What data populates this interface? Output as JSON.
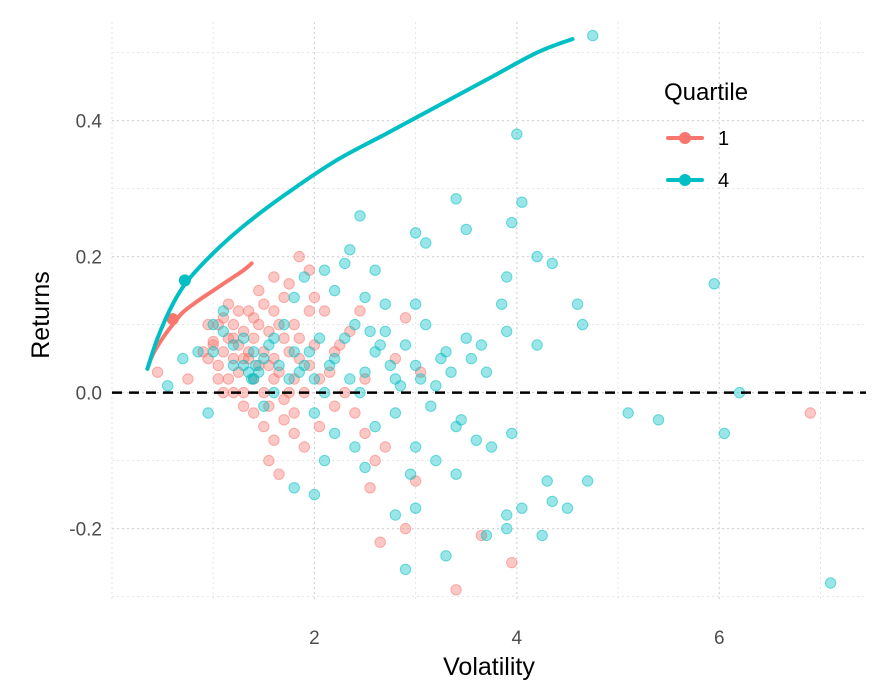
{
  "chart_data": {
    "type": "scatter",
    "title": "",
    "xlabel": "Volatility",
    "ylabel": "Returns",
    "xlim": [
      0.0,
      7.45
    ],
    "ylim": [
      -0.305,
      0.545
    ],
    "x_ticks": [
      2,
      4,
      6
    ],
    "x_tick_labels": [
      "2",
      "4",
      "6"
    ],
    "y_ticks": [
      -0.2,
      0.0,
      0.2,
      0.4
    ],
    "y_tick_labels": [
      "-0.2",
      "0.0",
      "0.2",
      "0.4"
    ],
    "grid": "dotted major and minor",
    "hline": {
      "y": 0.0,
      "style": "dashed",
      "color": "#000000"
    },
    "legend": {
      "title": "Quartile",
      "position": "right",
      "entries": [
        {
          "label": "1",
          "color": "#F8766D"
        },
        {
          "label": "4",
          "color": "#00BFC4"
        }
      ]
    },
    "series": [
      {
        "name": "1",
        "color": "#F8766D",
        "frontier": [
          [
            0.35,
            0.035
          ],
          [
            0.4,
            0.055
          ],
          [
            0.5,
            0.08
          ],
          [
            0.6,
            0.1
          ],
          [
            0.7,
            0.118
          ],
          [
            0.85,
            0.135
          ],
          [
            1.0,
            0.15
          ],
          [
            1.15,
            0.165
          ],
          [
            1.3,
            0.18
          ],
          [
            1.38,
            0.19
          ]
        ],
        "highlight": [
          0.6,
          0.108
        ],
        "points": [
          [
            0.45,
            0.03
          ],
          [
            0.75,
            0.02
          ],
          [
            0.9,
            0.06
          ],
          [
            0.95,
            0.1
          ],
          [
            1.0,
            0.075
          ],
          [
            1.05,
            0.1
          ],
          [
            1.05,
            0.04
          ],
          [
            1.1,
            0.06
          ],
          [
            1.1,
            0.11
          ],
          [
            1.15,
            0.08
          ],
          [
            1.15,
            0.02
          ],
          [
            1.2,
            0.05
          ],
          [
            1.2,
            0.1
          ],
          [
            1.25,
            0.07
          ],
          [
            1.25,
            0.03
          ],
          [
            1.3,
            0.09
          ],
          [
            1.3,
            0.0
          ],
          [
            1.35,
            0.05
          ],
          [
            1.35,
            0.12
          ],
          [
            1.4,
            0.08
          ],
          [
            1.4,
            0.02
          ],
          [
            1.45,
            0.1
          ],
          [
            1.45,
            0.04
          ],
          [
            1.5,
            0.06
          ],
          [
            1.5,
            0.0
          ],
          [
            1.55,
            0.09
          ],
          [
            1.55,
            -0.02
          ],
          [
            1.6,
            0.05
          ],
          [
            1.6,
            0.12
          ],
          [
            1.65,
            0.03
          ],
          [
            1.7,
            0.08
          ],
          [
            1.7,
            -0.01
          ],
          [
            1.75,
            0.06
          ],
          [
            1.8,
            0.1
          ],
          [
            1.8,
            0.02
          ],
          [
            1.85,
            0.05
          ],
          [
            1.9,
            0.0
          ],
          [
            1.95,
            0.04
          ],
          [
            2.0,
            0.07
          ],
          [
            2.05,
            0.02
          ],
          [
            1.2,
            0.0
          ],
          [
            1.3,
            -0.02
          ],
          [
            1.4,
            -0.03
          ],
          [
            1.5,
            -0.05
          ],
          [
            1.6,
            -0.07
          ],
          [
            1.7,
            -0.04
          ],
          [
            1.8,
            -0.06
          ],
          [
            1.9,
            -0.08
          ],
          [
            1.55,
            -0.1
          ],
          [
            1.65,
            -0.12
          ],
          [
            1.75,
            0.16
          ],
          [
            1.85,
            0.2
          ],
          [
            1.95,
            0.18
          ],
          [
            2.0,
            0.14
          ],
          [
            2.1,
            0.12
          ],
          [
            2.2,
            0.06
          ],
          [
            2.3,
            0.0
          ],
          [
            2.4,
            -0.03
          ],
          [
            2.5,
            -0.06
          ],
          [
            2.6,
            -0.1
          ],
          [
            2.55,
            -0.14
          ],
          [
            2.65,
            -0.22
          ],
          [
            2.9,
            -0.2
          ],
          [
            3.0,
            -0.13
          ],
          [
            3.4,
            -0.29
          ],
          [
            3.95,
            -0.25
          ],
          [
            3.65,
            -0.21
          ],
          [
            2.9,
            0.11
          ],
          [
            2.8,
            0.05
          ],
          [
            3.05,
            0.03
          ],
          [
            1.15,
            0.13
          ],
          [
            1.45,
            0.15
          ],
          [
            1.6,
            0.17
          ],
          [
            1.35,
            0.06
          ],
          [
            1.25,
            0.12
          ],
          [
            1.05,
            0.02
          ],
          [
            0.95,
            0.05
          ],
          [
            1.1,
            0.0
          ],
          [
            1.5,
            0.13
          ],
          [
            1.7,
            0.14
          ],
          [
            6.9,
            -0.03
          ],
          [
            2.2,
            -0.02
          ],
          [
            2.05,
            -0.05
          ],
          [
            1.95,
            0.12
          ],
          [
            1.8,
            -0.03
          ],
          [
            2.35,
            0.09
          ],
          [
            2.5,
            0.02
          ],
          [
            2.7,
            -0.08
          ],
          [
            1.4,
            0.11
          ],
          [
            1.2,
            0.08
          ],
          [
            1.3,
            0.05
          ],
          [
            1.0,
            0.07
          ],
          [
            1.6,
            0.02
          ],
          [
            1.75,
            0.0
          ],
          [
            1.85,
            0.08
          ],
          [
            2.15,
            0.03
          ],
          [
            2.45,
            0.12
          ],
          [
            2.25,
            0.07
          ],
          [
            1.65,
            0.1
          ],
          [
            1.55,
            0.04
          ]
        ]
      },
      {
        "name": "4",
        "color": "#00BFC4",
        "frontier": [
          [
            0.35,
            0.035
          ],
          [
            0.45,
            0.08
          ],
          [
            0.6,
            0.13
          ],
          [
            0.75,
            0.165
          ],
          [
            1.0,
            0.205
          ],
          [
            1.3,
            0.245
          ],
          [
            1.7,
            0.29
          ],
          [
            2.2,
            0.34
          ],
          [
            2.7,
            0.38
          ],
          [
            3.2,
            0.42
          ],
          [
            3.7,
            0.46
          ],
          [
            4.2,
            0.5
          ],
          [
            4.55,
            0.52
          ]
        ],
        "highlight": [
          0.72,
          0.165
        ],
        "points": [
          [
            4.75,
            0.525
          ],
          [
            4.0,
            0.38
          ],
          [
            3.4,
            0.285
          ],
          [
            4.05,
            0.28
          ],
          [
            2.45,
            0.26
          ],
          [
            3.5,
            0.24
          ],
          [
            3.0,
            0.235
          ],
          [
            3.1,
            0.22
          ],
          [
            3.95,
            0.25
          ],
          [
            2.35,
            0.21
          ],
          [
            4.2,
            0.2
          ],
          [
            4.35,
            0.19
          ],
          [
            3.9,
            0.17
          ],
          [
            5.95,
            0.16
          ],
          [
            4.6,
            0.13
          ],
          [
            4.65,
            0.1
          ],
          [
            4.2,
            0.07
          ],
          [
            6.2,
            0.0
          ],
          [
            6.05,
            -0.06
          ],
          [
            5.1,
            -0.03
          ],
          [
            5.4,
            -0.04
          ],
          [
            4.7,
            -0.13
          ],
          [
            4.3,
            -0.13
          ],
          [
            4.35,
            -0.16
          ],
          [
            4.5,
            -0.17
          ],
          [
            4.05,
            -0.17
          ],
          [
            3.9,
            -0.18
          ],
          [
            3.9,
            -0.2
          ],
          [
            4.25,
            -0.21
          ],
          [
            7.1,
            -0.28
          ],
          [
            2.9,
            -0.26
          ],
          [
            3.3,
            -0.24
          ],
          [
            3.7,
            -0.21
          ],
          [
            3.0,
            -0.17
          ],
          [
            2.8,
            -0.18
          ],
          [
            1.8,
            -0.14
          ],
          [
            2.0,
            -0.15
          ],
          [
            3.4,
            -0.12
          ],
          [
            3.6,
            -0.07
          ],
          [
            3.95,
            -0.06
          ],
          [
            0.95,
            -0.03
          ],
          [
            0.85,
            0.06
          ],
          [
            0.7,
            0.05
          ],
          [
            1.0,
            0.1
          ],
          [
            1.1,
            0.12
          ],
          [
            1.2,
            0.07
          ],
          [
            1.3,
            0.04
          ],
          [
            1.4,
            0.02
          ],
          [
            1.45,
            0.03
          ],
          [
            1.5,
            0.05
          ],
          [
            1.6,
            0.08
          ],
          [
            1.7,
            0.1
          ],
          [
            1.8,
            0.06
          ],
          [
            1.9,
            0.04
          ],
          [
            2.0,
            0.02
          ],
          [
            2.1,
            0.0
          ],
          [
            2.2,
            0.05
          ],
          [
            2.3,
            0.08
          ],
          [
            2.4,
            0.1
          ],
          [
            2.5,
            0.03
          ],
          [
            2.6,
            0.06
          ],
          [
            2.7,
            0.09
          ],
          [
            2.8,
            0.02
          ],
          [
            2.9,
            0.07
          ],
          [
            3.0,
            0.04
          ],
          [
            3.1,
            0.1
          ],
          [
            3.2,
            0.01
          ],
          [
            3.3,
            0.06
          ],
          [
            3.5,
            0.08
          ],
          [
            3.7,
            0.03
          ],
          [
            3.9,
            0.09
          ],
          [
            2.2,
            0.15
          ],
          [
            2.3,
            0.19
          ],
          [
            2.5,
            0.14
          ],
          [
            2.7,
            0.13
          ],
          [
            1.9,
            0.17
          ],
          [
            2.1,
            0.18
          ],
          [
            1.8,
            0.14
          ],
          [
            2.6,
            0.18
          ],
          [
            3.0,
            0.13
          ],
          [
            2.0,
            -0.03
          ],
          [
            2.2,
            -0.06
          ],
          [
            2.4,
            -0.08
          ],
          [
            2.6,
            -0.05
          ],
          [
            2.8,
            -0.03
          ],
          [
            3.0,
            -0.08
          ],
          [
            3.2,
            -0.1
          ],
          [
            3.4,
            -0.05
          ],
          [
            2.5,
            -0.11
          ],
          [
            2.1,
            -0.1
          ],
          [
            1.5,
            -0.02
          ],
          [
            1.6,
            0.0
          ],
          [
            1.3,
            0.08
          ],
          [
            1.4,
            0.06
          ],
          [
            1.2,
            0.04
          ],
          [
            1.1,
            0.09
          ],
          [
            1.0,
            0.06
          ],
          [
            1.55,
            0.07
          ],
          [
            1.65,
            0.04
          ],
          [
            1.75,
            0.02
          ],
          [
            1.85,
            0.03
          ],
          [
            1.95,
            0.06
          ],
          [
            2.05,
            0.08
          ],
          [
            2.15,
            0.04
          ],
          [
            2.35,
            0.02
          ],
          [
            2.45,
            0.0
          ],
          [
            2.55,
            0.09
          ],
          [
            2.65,
            0.07
          ],
          [
            2.75,
            0.04
          ],
          [
            2.85,
            0.01
          ],
          [
            3.05,
            0.02
          ],
          [
            3.15,
            -0.02
          ],
          [
            3.25,
            0.05
          ],
          [
            3.35,
            0.03
          ],
          [
            3.45,
            -0.04
          ],
          [
            3.55,
            0.05
          ],
          [
            3.65,
            0.07
          ],
          [
            3.75,
            -0.08
          ],
          [
            3.85,
            0.13
          ],
          [
            2.95,
            -0.12
          ],
          [
            0.55,
            0.01
          ],
          [
            1.35,
            0.03
          ],
          [
            1.42,
            0.04
          ],
          [
            1.38,
            0.02
          ]
        ]
      }
    ]
  }
}
